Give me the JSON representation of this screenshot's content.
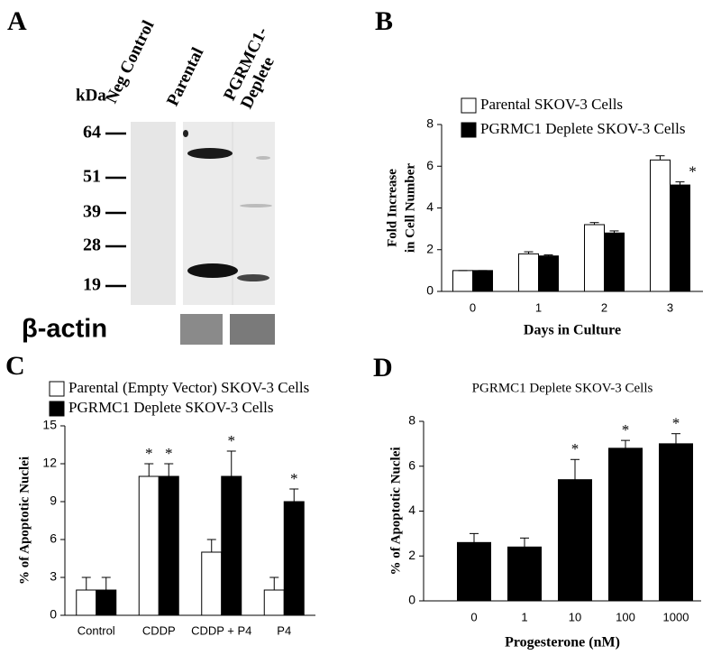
{
  "blot": {
    "label": "A",
    "unit": "kDa",
    "lanes": [
      "Neg Control",
      "Parental",
      "PGRMC1-Deplete"
    ],
    "markers": [
      64,
      51,
      39,
      28,
      19
    ],
    "loading_control": "β-actin"
  },
  "chart_data": [
    {
      "type": "bar",
      "label": "B",
      "ylabel": [
        "Fold Increase",
        "in Cell Number"
      ],
      "xlabel": "Days in Culture",
      "categories": [
        "0",
        "1",
        "2",
        "3"
      ],
      "series": [
        {
          "name": "Parental SKOV-3 Cells",
          "color": "#ffffff",
          "values": [
            1,
            1.8,
            3.2,
            6.3
          ],
          "errors": [
            0,
            0.1,
            0.1,
            0.2
          ],
          "significance": [
            null,
            null,
            null,
            null
          ]
        },
        {
          "name": "PGRMC1 Deplete SKOV-3 Cells",
          "color": "#000000",
          "values": [
            1,
            1.7,
            2.8,
            5.1
          ],
          "errors": [
            0,
            0.05,
            0.1,
            0.15
          ],
          "significance": [
            null,
            null,
            null,
            "*"
          ]
        }
      ],
      "ylim": [
        0,
        8
      ],
      "yticks": [
        0,
        2,
        4,
        6,
        8
      ],
      "legend": "upper left"
    },
    {
      "type": "bar",
      "label": "C",
      "ylabel": [
        "% of Apoptotic Nuclei"
      ],
      "categories": [
        "Control",
        "CDDP",
        "CDDP + P4",
        "P4"
      ],
      "series": [
        {
          "name": "Parental (Empty Vector) SKOV-3 Cells",
          "color": "#ffffff",
          "values": [
            2,
            11,
            5,
            2
          ],
          "errors": [
            1,
            1,
            1,
            1
          ],
          "significance": [
            null,
            "*",
            null,
            null
          ]
        },
        {
          "name": "PGRMC1 Deplete SKOV-3 Cells",
          "color": "#000000",
          "values": [
            2,
            11,
            11,
            9
          ],
          "errors": [
            1,
            1,
            2,
            1
          ],
          "significance": [
            null,
            "*",
            "*",
            "*"
          ]
        }
      ],
      "ylim": [
        0,
        15
      ],
      "yticks": [
        0,
        3,
        6,
        9,
        12,
        15
      ],
      "legend": "upper left"
    },
    {
      "type": "bar",
      "label": "D",
      "title": "PGRMC1 Deplete SKOV-3 Cells",
      "ylabel": [
        "% of Apoptotic Nuclei"
      ],
      "xlabel": "Progesterone (nM)",
      "categories": [
        "0",
        "1",
        "10",
        "100",
        "1000"
      ],
      "series": [
        {
          "color": "#000000",
          "values": [
            2.6,
            2.4,
            5.4,
            6.8,
            7.0
          ],
          "errors": [
            0.4,
            0.4,
            0.9,
            0.35,
            0.45
          ],
          "significance": [
            null,
            null,
            "*",
            "*",
            "*"
          ]
        }
      ],
      "ylim": [
        0,
        8
      ],
      "yticks": [
        0,
        2,
        4,
        6,
        8
      ]
    }
  ]
}
